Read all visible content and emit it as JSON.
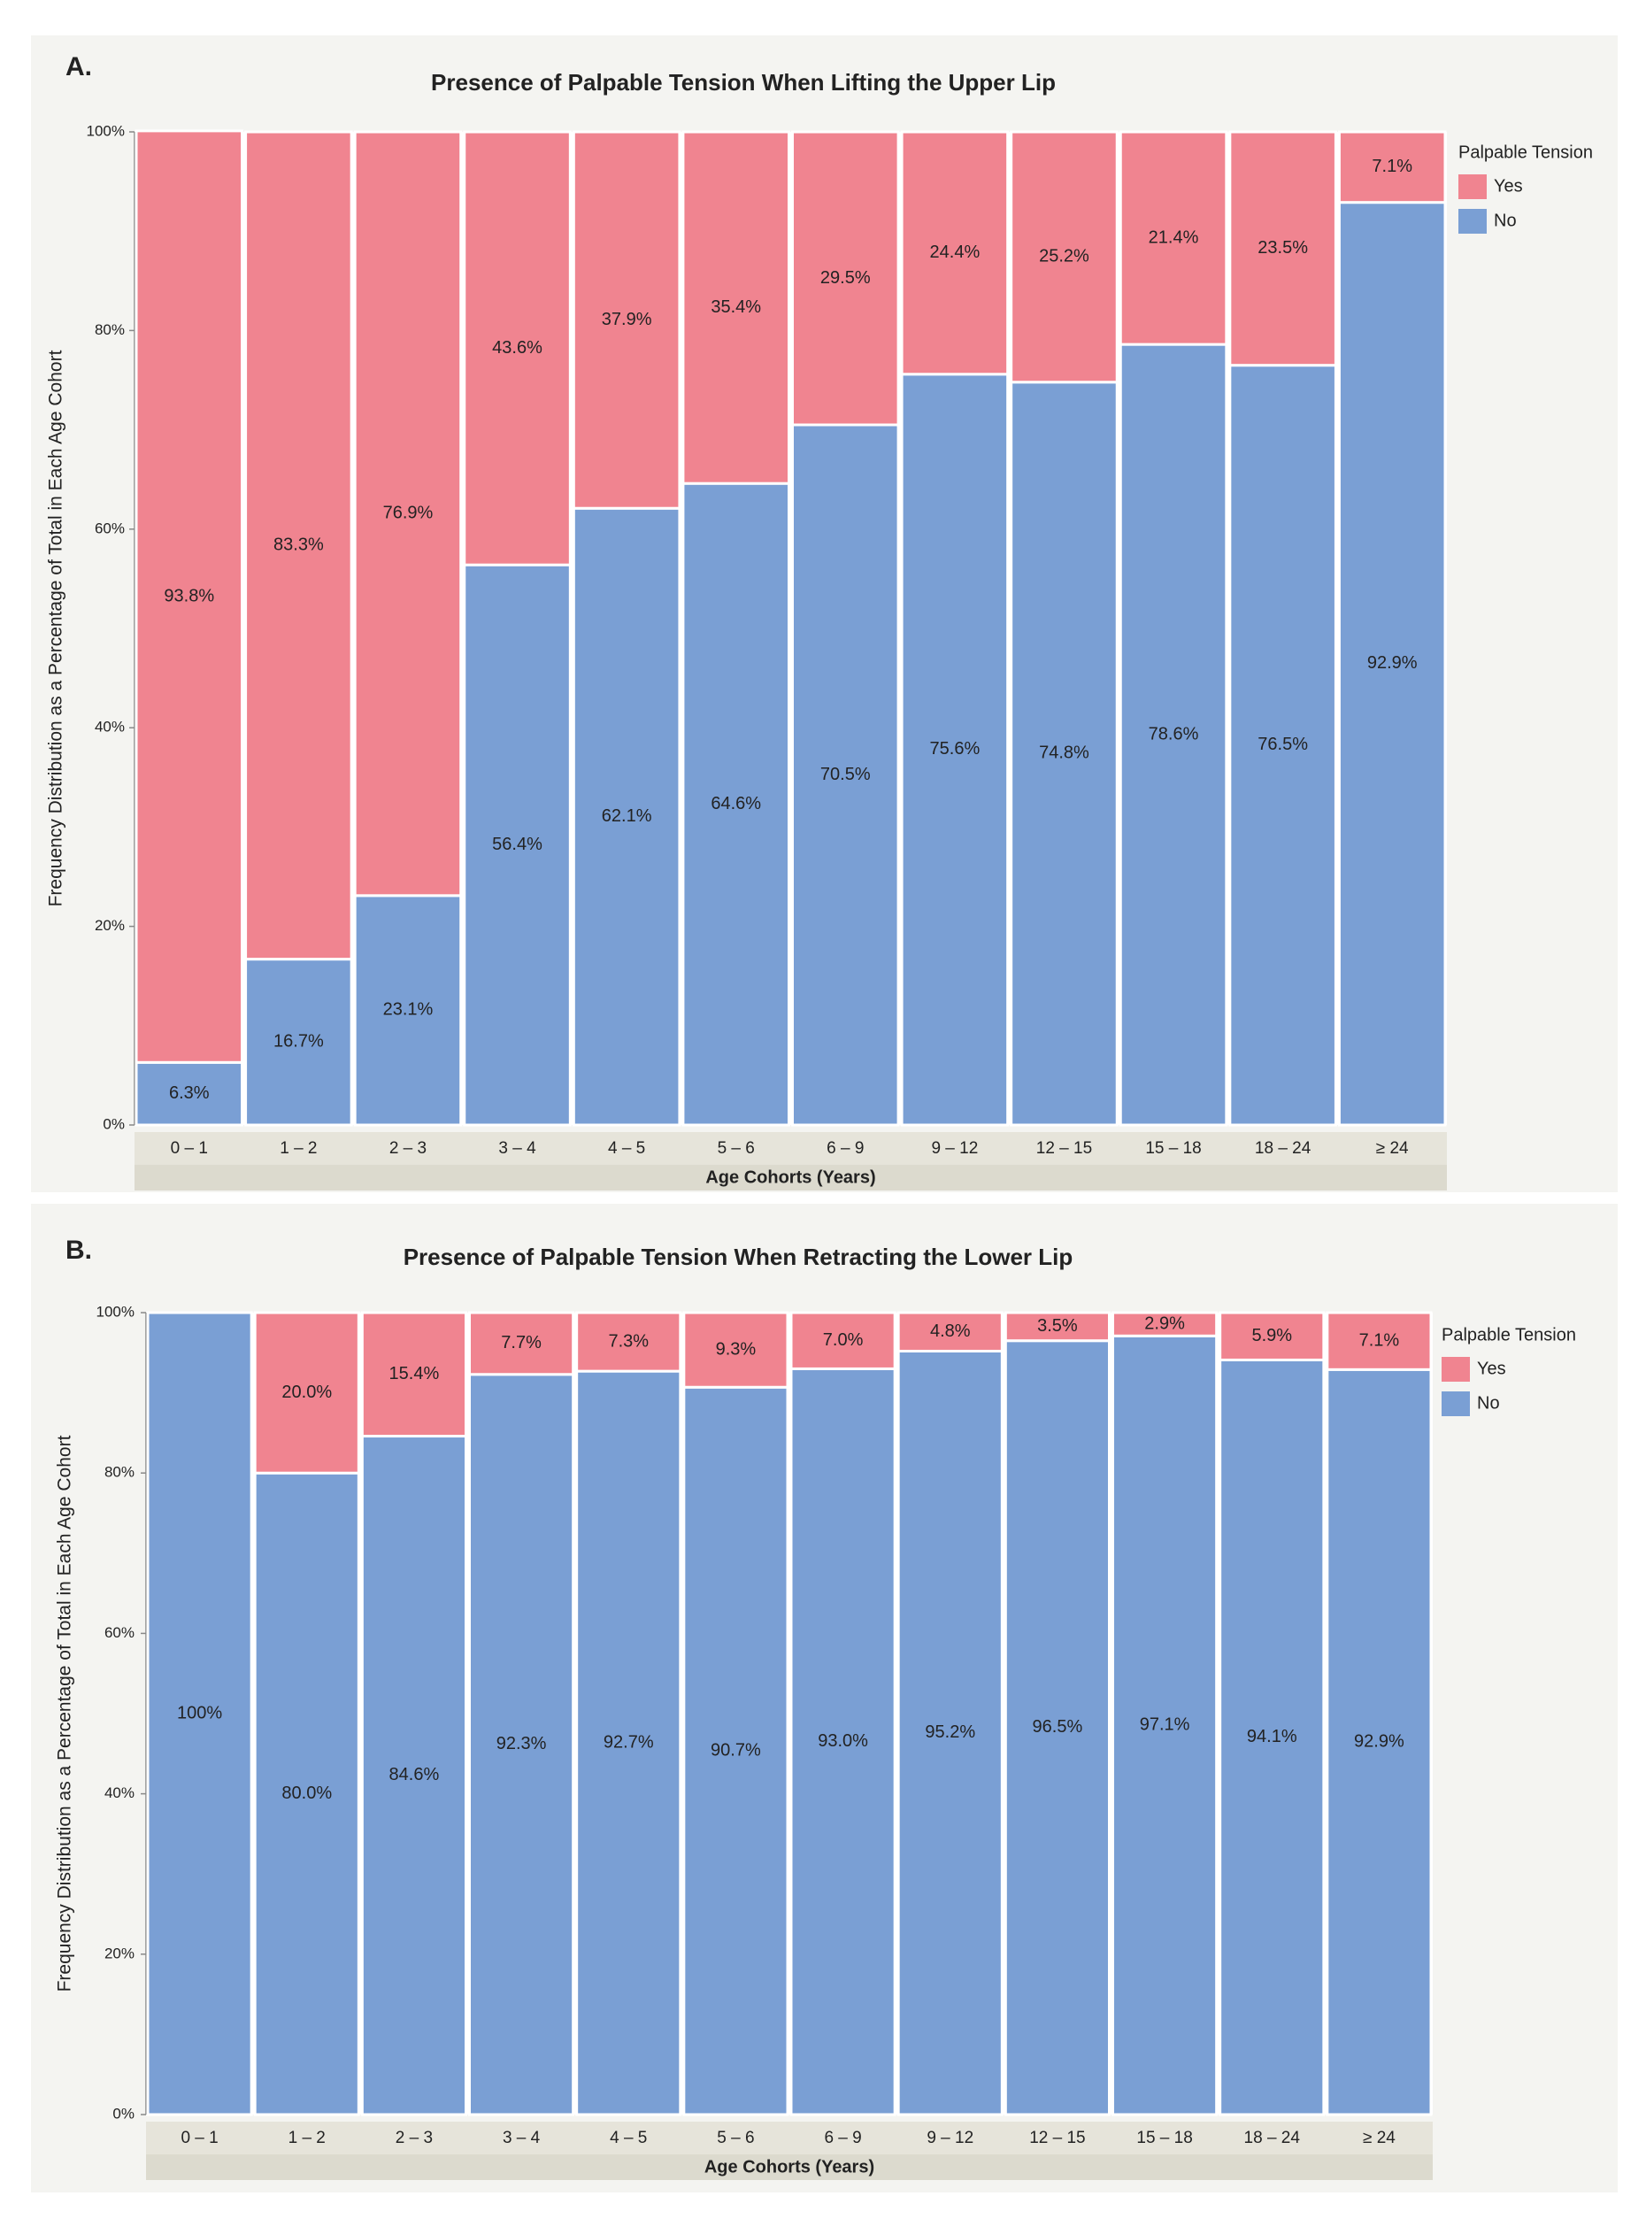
{
  "chart_data": [
    {
      "type": "stacked_bar",
      "panel_label": "A.",
      "title": "Presence of Palpable Tension When Lifting the Upper Lip",
      "x_label": "Age Cohorts (Years)",
      "y_label": "Frequency Distribution as a Percentage of Total in Each Age Cohort",
      "legend_title": "Palpable Tension",
      "legend": "top-right",
      "categories": [
        "0 – 1",
        "1 – 2",
        "2 – 3",
        "3 – 4",
        "4 – 5",
        "5 – 6",
        "6 – 9",
        "9 – 12",
        "12 – 15",
        "15 – 18",
        "18 – 24",
        "≥ 24"
      ],
      "series": [
        {
          "name": "Yes",
          "color": "#f08490",
          "values": [
            93.8,
            83.3,
            76.9,
            43.6,
            37.9,
            35.4,
            29.5,
            24.4,
            25.2,
            21.4,
            23.5,
            7.1
          ],
          "value_labels": [
            "93.8%",
            "83.3%",
            "76.9%",
            "43.6%",
            "37.9%",
            "35.4%",
            "29.5%",
            "24.4%",
            "25.2%",
            "21.4%",
            "23.5%",
            "7.1%"
          ]
        },
        {
          "name": "No",
          "color": "#7a9fd4",
          "values": [
            6.3,
            16.7,
            23.1,
            56.4,
            62.1,
            64.6,
            70.5,
            75.6,
            74.8,
            78.6,
            76.5,
            92.9
          ],
          "value_labels": [
            "6.3%",
            "16.7%",
            "23.1%",
            "56.4%",
            "62.1%",
            "64.6%",
            "70.5%",
            "75.6%",
            "74.8%",
            "78.6%",
            "76.5%",
            "92.9%"
          ]
        }
      ],
      "ylim": [
        0,
        100
      ],
      "yticks": [
        {
          "value": 0,
          "label": "0%"
        },
        {
          "value": 20,
          "label": "20%"
        },
        {
          "value": 40,
          "label": "40%"
        },
        {
          "value": 60,
          "label": "60%"
        },
        {
          "value": 80,
          "label": "80%"
        },
        {
          "value": 100,
          "label": "100%"
        }
      ]
    },
    {
      "type": "stacked_bar",
      "panel_label": "B.",
      "title": "Presence of Palpable Tension When Retracting the Lower Lip",
      "x_label": "Age Cohorts (Years)",
      "y_label": "Frequency Distribution as a Percentage of Total in Each Age Cohort",
      "legend_title": "Palpable Tension",
      "legend": "top-right",
      "categories": [
        "0 – 1",
        "1 – 2",
        "2 – 3",
        "3 – 4",
        "4 – 5",
        "5 – 6",
        "6 – 9",
        "9 – 12",
        "12 – 15",
        "15 – 18",
        "18 – 24",
        "≥ 24"
      ],
      "series": [
        {
          "name": "Yes",
          "color": "#f08490",
          "values": [
            0,
            20.0,
            15.4,
            7.7,
            7.3,
            9.3,
            7.0,
            4.8,
            3.5,
            2.9,
            5.9,
            7.1
          ],
          "value_labels": [
            null,
            "20.0%",
            "15.4%",
            "7.7%",
            "7.3%",
            "9.3%",
            "7.0%",
            "4.8%",
            "3.5%",
            "2.9%",
            "5.9%",
            "7.1%"
          ]
        },
        {
          "name": "No",
          "color": "#7a9fd4",
          "values": [
            100,
            80.0,
            84.6,
            92.3,
            92.7,
            90.7,
            93.0,
            95.2,
            96.5,
            97.1,
            94.1,
            92.9
          ],
          "value_labels": [
            "100%",
            "80.0%",
            "84.6%",
            "92.3%",
            "92.7%",
            "90.7%",
            "93.0%",
            "95.2%",
            "96.5%",
            "97.1%",
            "94.1%",
            "92.9%"
          ]
        }
      ],
      "ylim": [
        0,
        100
      ],
      "yticks": [
        {
          "value": 0,
          "label": "0%"
        },
        {
          "value": 20,
          "label": "20%"
        },
        {
          "value": 40,
          "label": "40%"
        },
        {
          "value": 60,
          "label": "60%"
        },
        {
          "value": 80,
          "label": "80%"
        },
        {
          "value": 100,
          "label": "100%"
        }
      ]
    }
  ]
}
